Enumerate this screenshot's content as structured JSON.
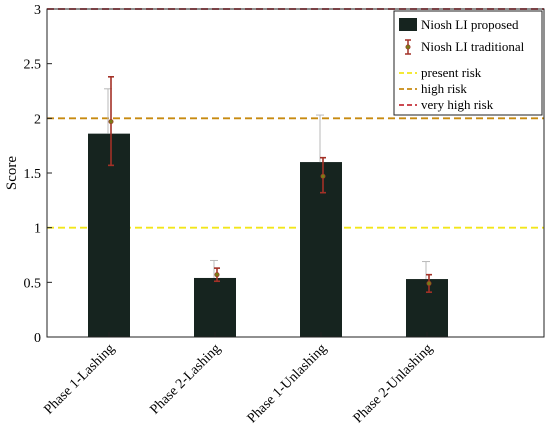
{
  "chart_data": {
    "type": "bar",
    "title": "",
    "xlabel": "",
    "ylabel": "Score",
    "ylim": [
      0,
      3
    ],
    "yticks": [
      0,
      0.5,
      1,
      1.5,
      2,
      2.5,
      3
    ],
    "ytick_labels": [
      "0",
      "0.5",
      "1",
      "1.5",
      "2",
      "2.5",
      "3"
    ],
    "categories": [
      "Phase 1-Lashing",
      "Phase 2-Lashing",
      "Phase 1-Unlashing",
      "Phase 2-Unlashing"
    ],
    "grid": false,
    "legend_position": "top-right",
    "series": [
      {
        "name": "Niosh LI proposed",
        "kind": "bar",
        "color": "#16241f",
        "values": [
          1.86,
          0.54,
          1.6,
          0.53
        ],
        "error_upper": [
          2.27,
          0.7,
          2.03,
          0.69
        ],
        "error_color": "#b8b8b8"
      },
      {
        "name": "Niosh LI traditional",
        "kind": "errorbar",
        "color": "#a33127",
        "marker_color": "#7a7a16",
        "values": [
          1.97,
          0.57,
          1.47,
          0.49
        ],
        "error_low": [
          1.57,
          0.51,
          1.32,
          0.41
        ],
        "error_high": [
          2.38,
          0.63,
          1.64,
          0.57
        ]
      }
    ],
    "reference_lines": [
      {
        "name": "present risk",
        "y": 1,
        "color": "#f2e61a"
      },
      {
        "name": "high risk",
        "y": 2,
        "color": "#c88a10"
      },
      {
        "name": "very high risk",
        "y": 3,
        "color": "#c5303a"
      }
    ]
  }
}
